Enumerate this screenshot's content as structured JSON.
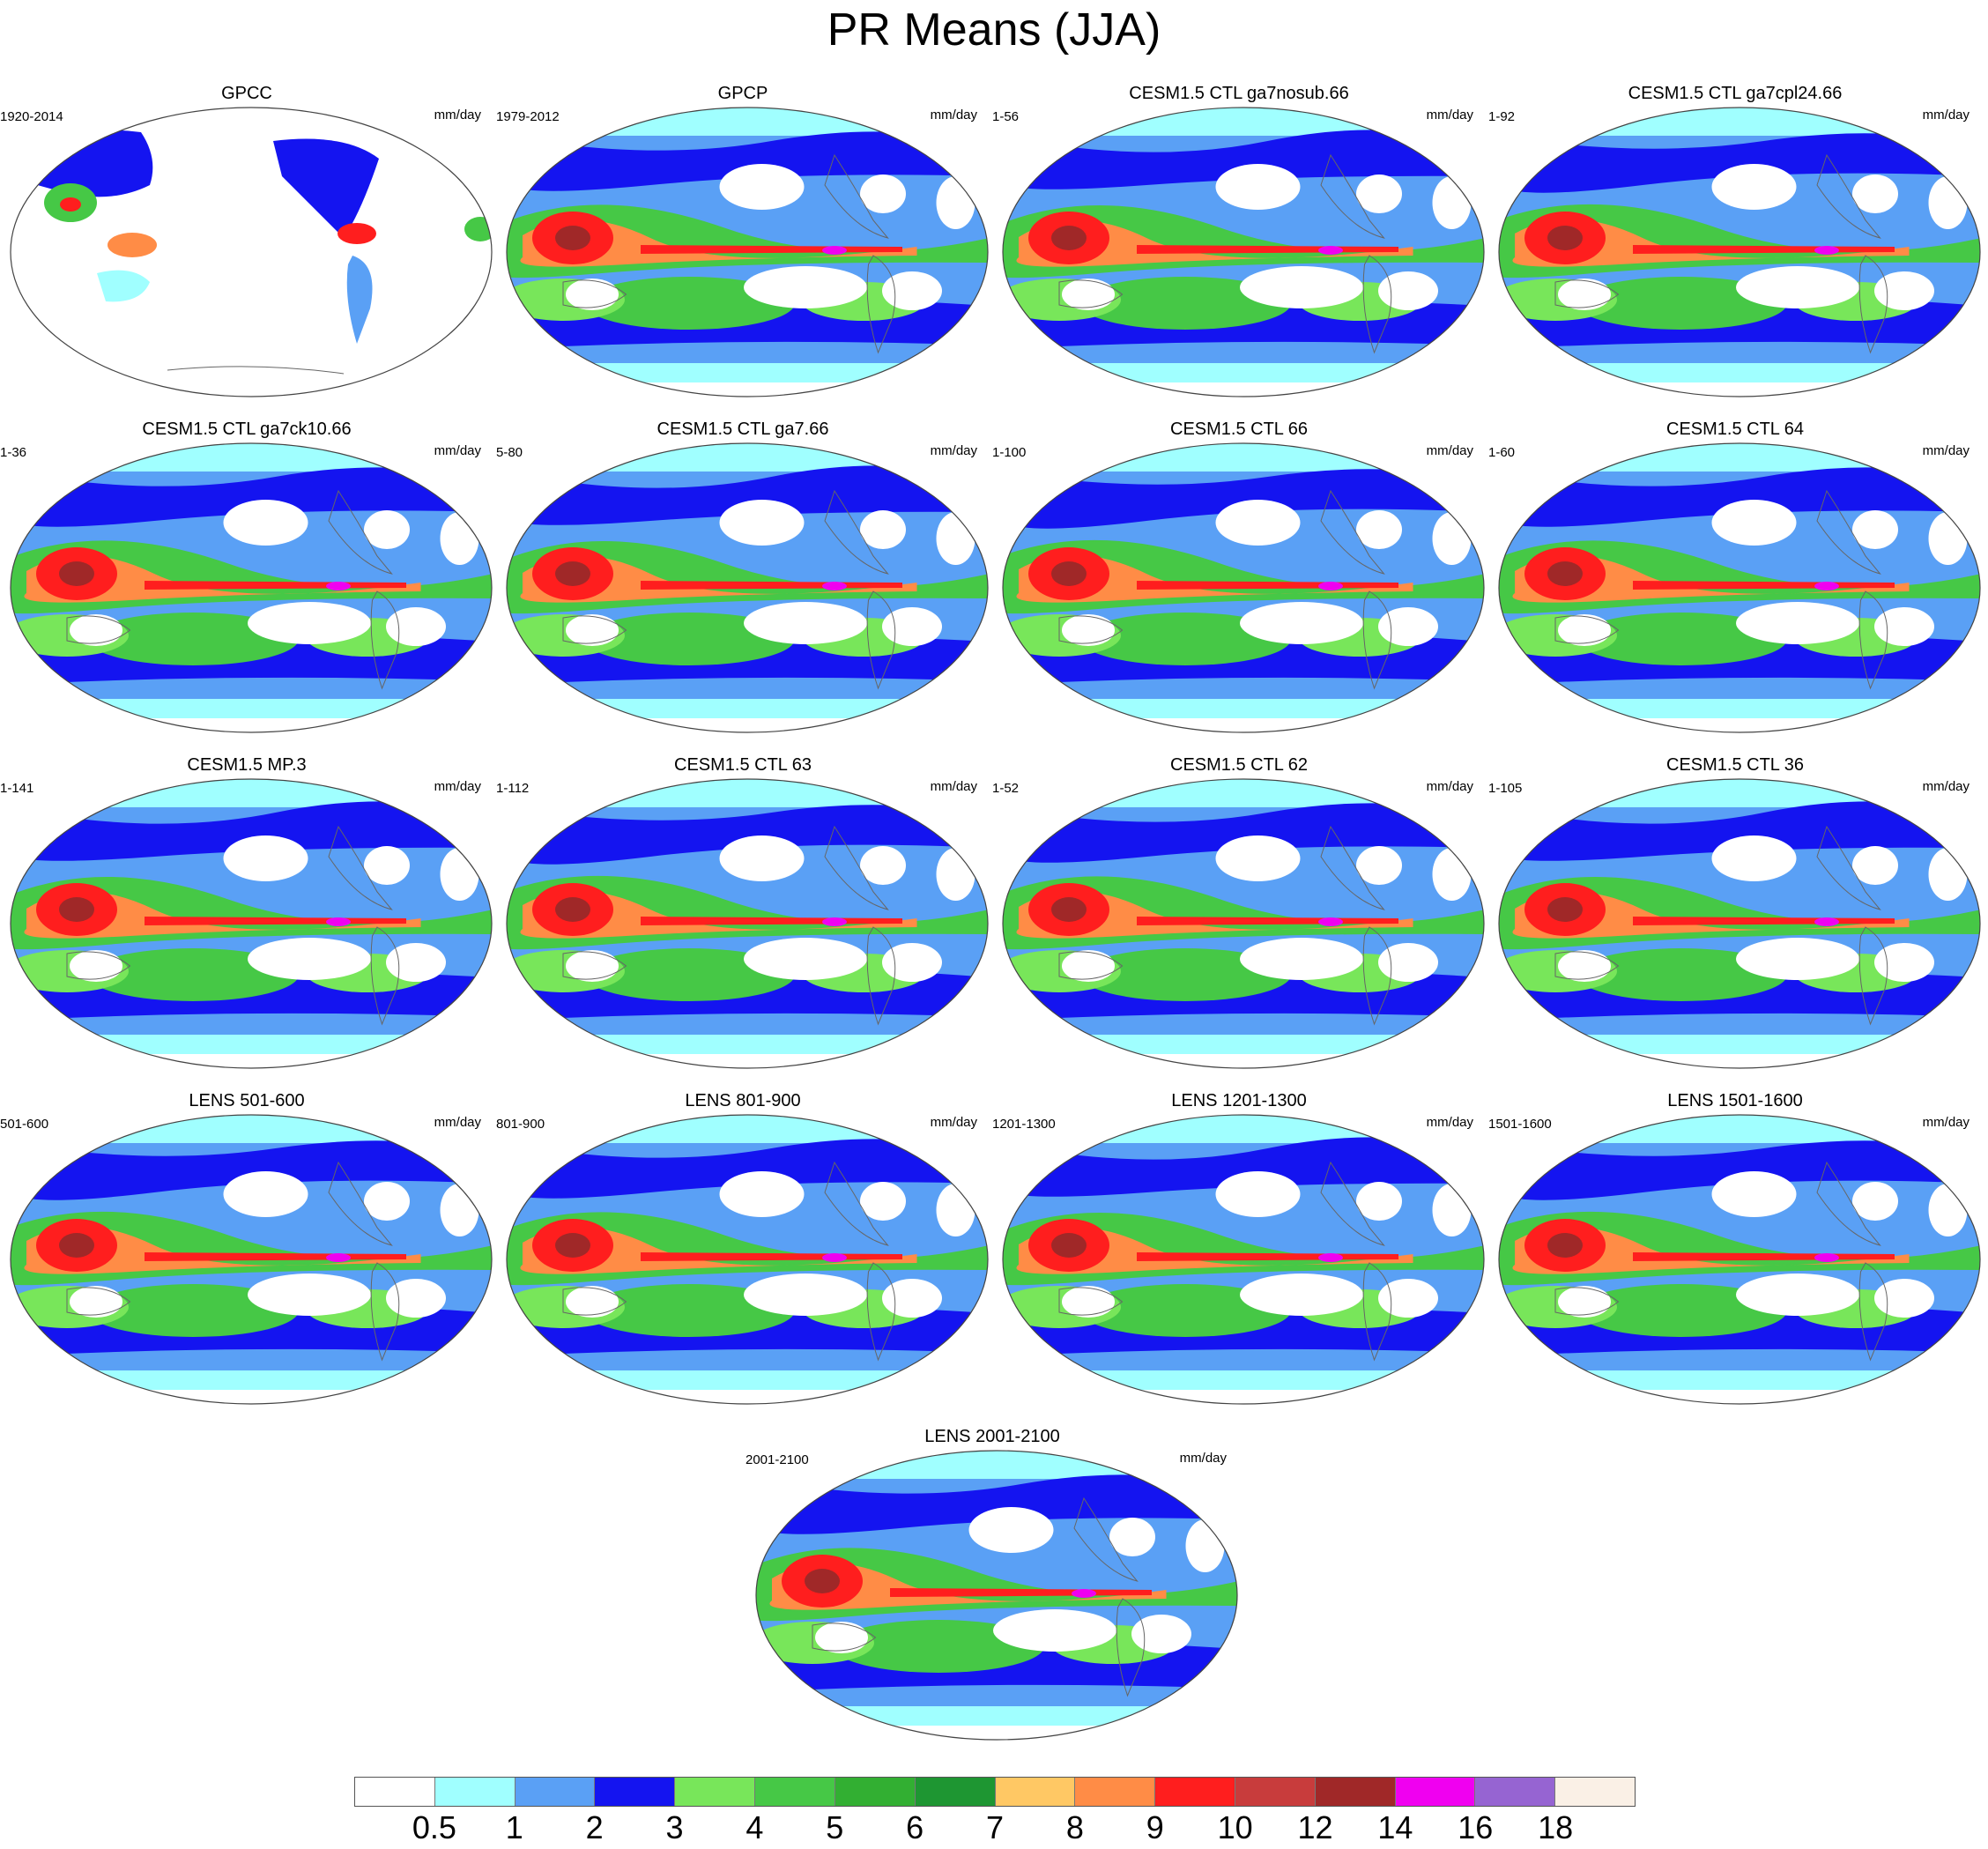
{
  "title": "PR Means (JJA)",
  "units": "mm/day",
  "panels": [
    {
      "title": "GPCC",
      "years": "1920-2014",
      "kind": "obs_land"
    },
    {
      "title": "GPCP",
      "years": "1979-2012",
      "kind": "model"
    },
    {
      "title": "CESM1.5 CTL ga7nosub.66",
      "years": "1-56",
      "kind": "model"
    },
    {
      "title": "CESM1.5 CTL ga7cpl24.66",
      "years": "1-92",
      "kind": "model"
    },
    {
      "title": "CESM1.5 CTL ga7ck10.66",
      "years": "1-36",
      "kind": "model"
    },
    {
      "title": "CESM1.5 CTL ga7.66",
      "years": "5-80",
      "kind": "model"
    },
    {
      "title": "CESM1.5 CTL 66",
      "years": "1-100",
      "kind": "model"
    },
    {
      "title": "CESM1.5 CTL 64",
      "years": "1-60",
      "kind": "model"
    },
    {
      "title": "CESM1.5 MP.3",
      "years": "1-141",
      "kind": "model"
    },
    {
      "title": "CESM1.5 CTL 63",
      "years": "1-112",
      "kind": "model"
    },
    {
      "title": "CESM1.5 CTL 62",
      "years": "1-52",
      "kind": "model"
    },
    {
      "title": "CESM1.5 CTL 36",
      "years": "1-105",
      "kind": "model"
    },
    {
      "title": "LENS 501-600",
      "years": "501-600",
      "kind": "model"
    },
    {
      "title": "LENS 801-900",
      "years": "801-900",
      "kind": "model"
    },
    {
      "title": "LENS 1201-1300",
      "years": "1201-1300",
      "kind": "model"
    },
    {
      "title": "LENS 1501-1600",
      "years": "1501-1600",
      "kind": "model"
    },
    {
      "title": "LENS 2001-2100",
      "years": "2001-2100",
      "kind": "model"
    }
  ],
  "chart_data": {
    "type": "heatmap",
    "title": "PR Means (JJA)",
    "units": "mm/day",
    "levels": [
      "0.5",
      "1",
      "2",
      "3",
      "4",
      "5",
      "6",
      "7",
      "8",
      "9",
      "10",
      "12",
      "14",
      "16",
      "18"
    ],
    "colors": [
      "#ffffff",
      "#a0ffff",
      "#5aa0f5",
      "#1414f0",
      "#78e65a",
      "#46c846",
      "#32af32",
      "#1e9632",
      "#ffc864",
      "#ff8c46",
      "#ff1e1e",
      "#c83c3c",
      "#a02828",
      "#f000f0",
      "#9664d2",
      "#faf0e6"
    ],
    "projection": "Robinson (Pacific-centred)",
    "panel_count": 17
  }
}
